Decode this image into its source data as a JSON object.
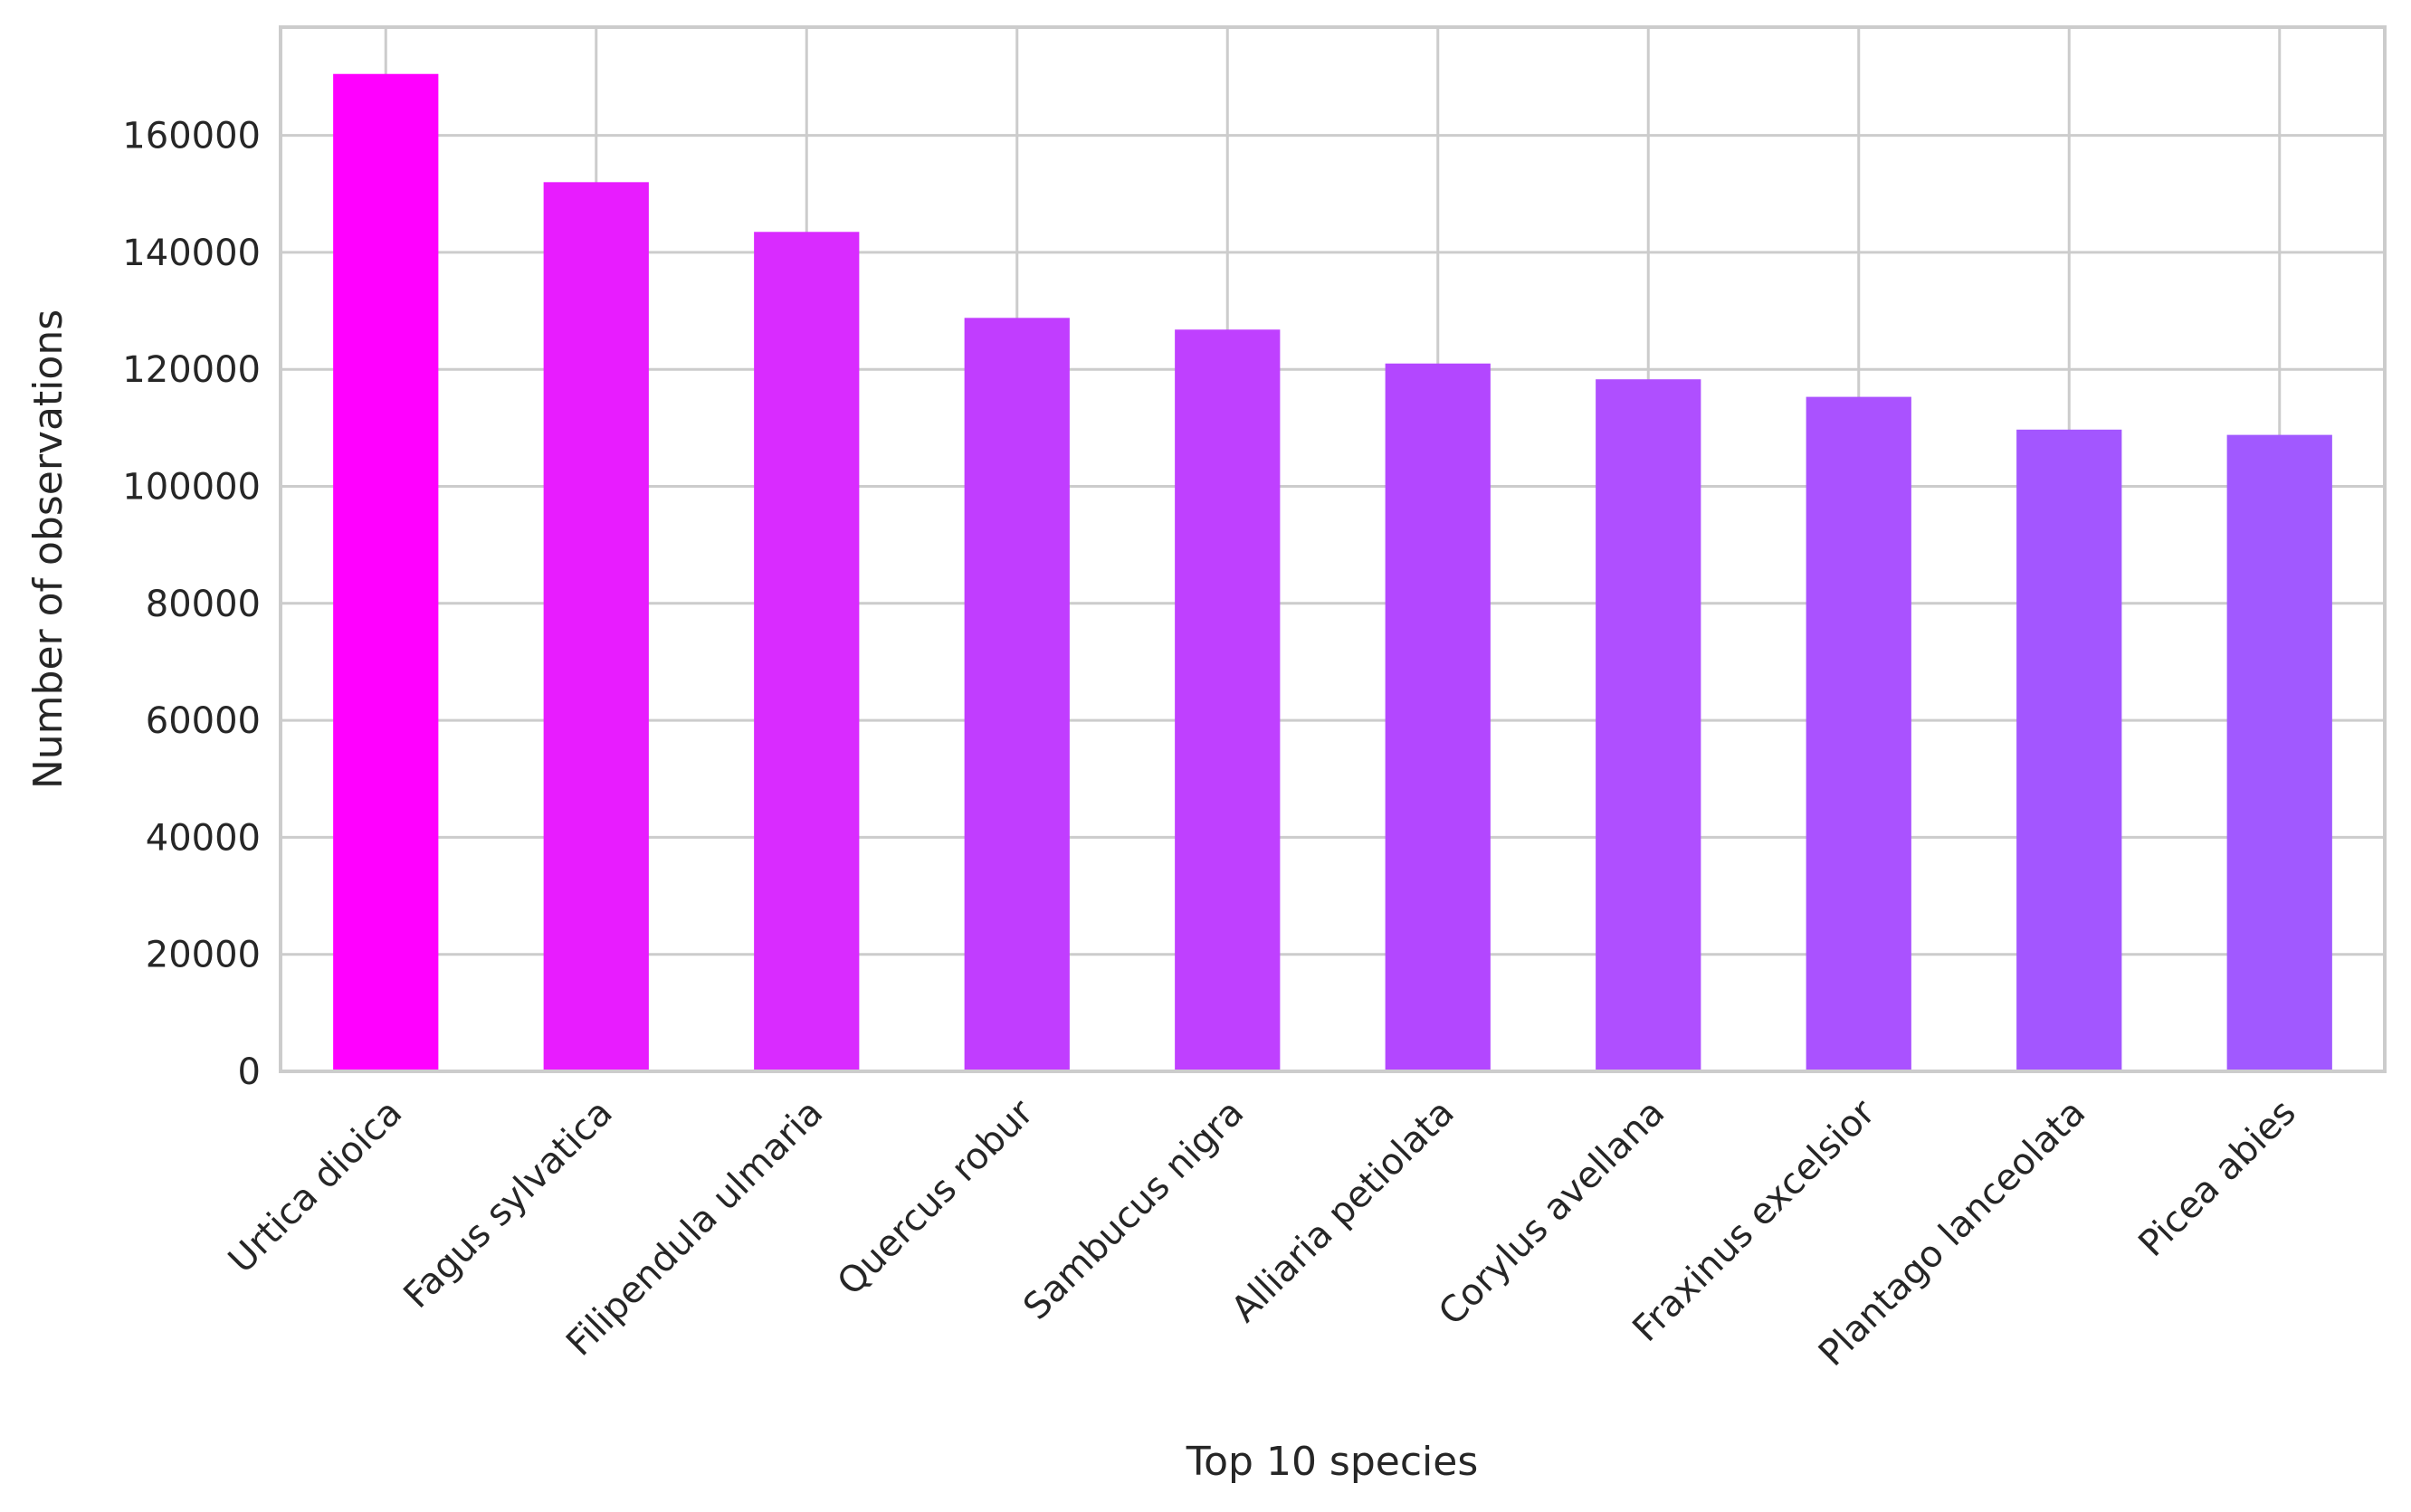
{
  "chart_data": {
    "type": "bar",
    "title": "",
    "xlabel": "Top 10 species",
    "ylabel": "Number of observations",
    "categories": [
      "Urtica dioica",
      "Fagus sylvatica",
      "Filipendula ulmaria",
      "Quercus robur",
      "Sambucus nigra",
      "Alliaria petiolata",
      "Corylus avellana",
      "Fraxinus excelsior",
      "Plantago lanceolata",
      "Picea abies"
    ],
    "values": [
      170500,
      152000,
      143500,
      128800,
      126800,
      121000,
      118300,
      115300,
      109700,
      108800
    ],
    "colors": [
      "#ff00ff",
      "#e81cff",
      "#d92bff",
      "#c13dff",
      "#bf40ff",
      "#b347ff",
      "#af4fff",
      "#aa52ff",
      "#a356ff",
      "#a159ff"
    ],
    "ylim": [
      0,
      178500
    ],
    "yticks": [
      0,
      20000,
      40000,
      60000,
      80000,
      100000,
      120000,
      140000,
      160000
    ],
    "grid": true,
    "legend": "none"
  }
}
